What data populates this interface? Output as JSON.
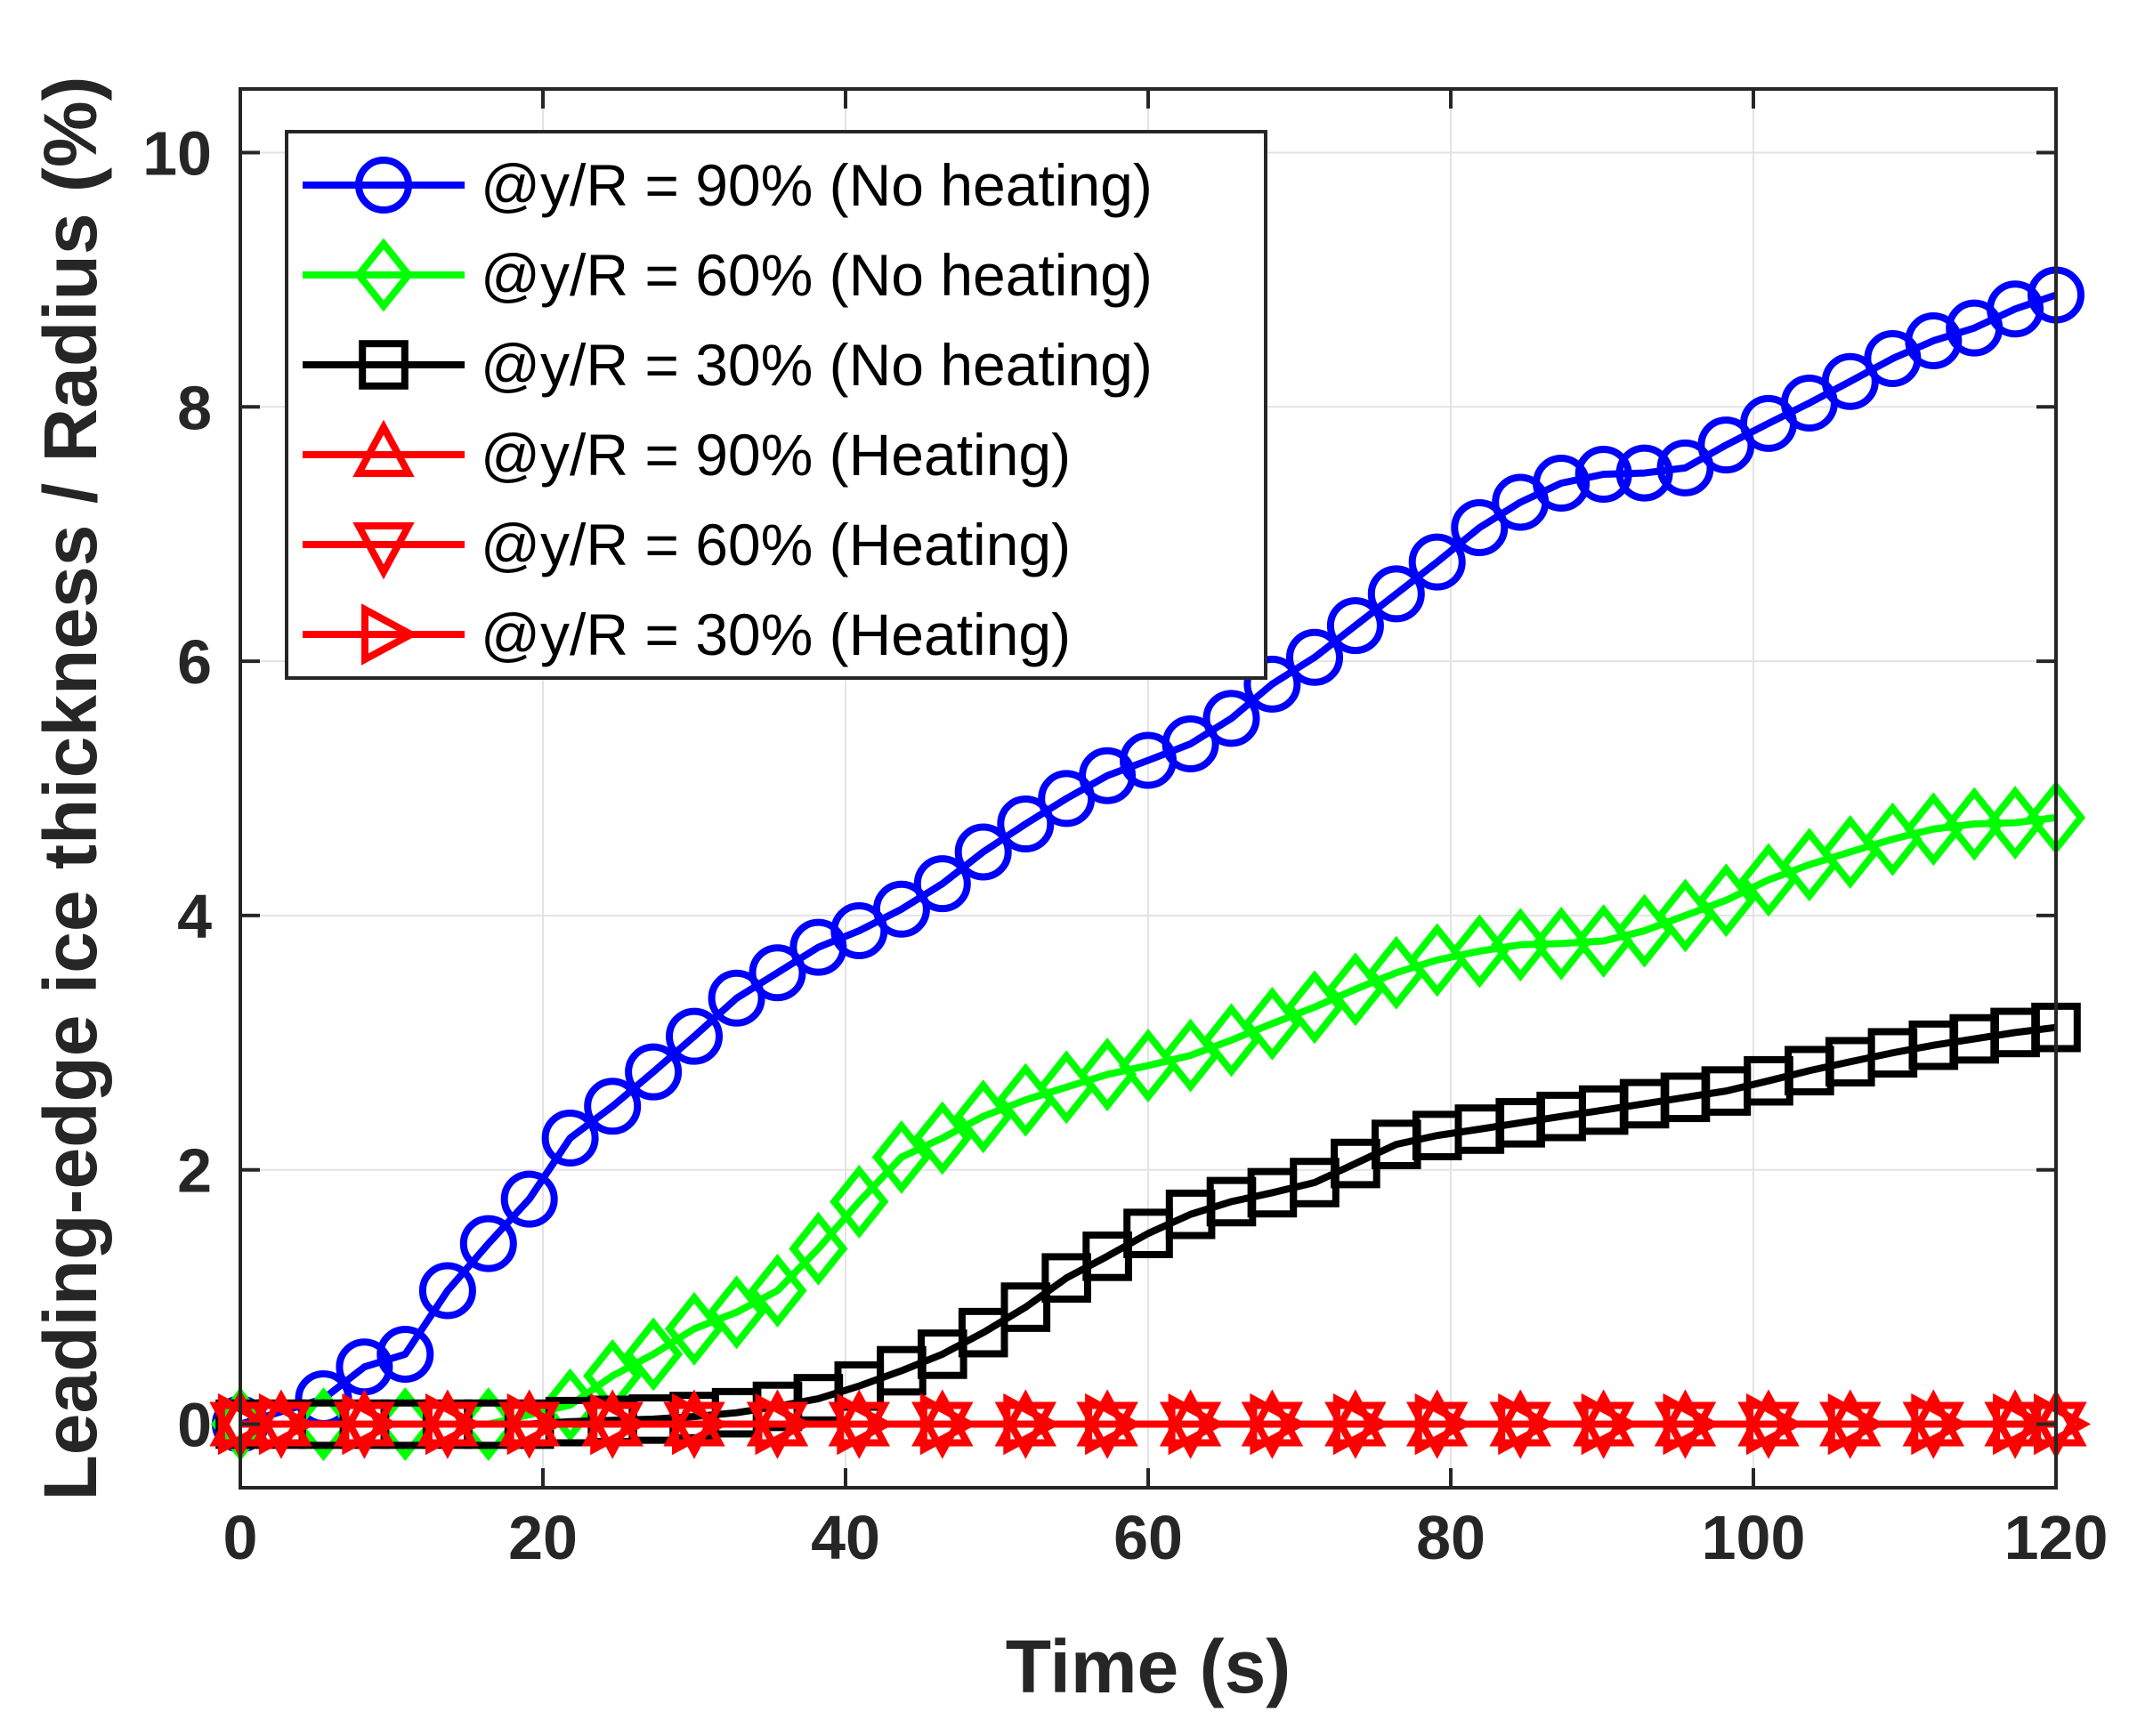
{
  "chart_data": {
    "type": "line",
    "title": "",
    "xlabel": "Time (s)",
    "ylabel": "Leading-edge ice thickness / Radius (%)",
    "xlim": [
      0,
      120
    ],
    "ylim": [
      -0.5,
      10.5
    ],
    "xticks": [
      0,
      20,
      40,
      60,
      80,
      100,
      120
    ],
    "yticks": [
      0,
      2,
      4,
      6,
      8,
      10
    ],
    "xtick_labels": [
      "0",
      "20",
      "40",
      "60",
      "80",
      "100",
      "120"
    ],
    "ytick_labels": [
      "0",
      "2",
      "4",
      "6",
      "8",
      "10"
    ],
    "grid": true,
    "legend_position": "top-left",
    "series": [
      {
        "name": "@y/R = 90% (No heating)",
        "color": "#0000ff",
        "marker": "circle",
        "x": [
          0,
          5.5,
          8.2,
          10.9,
          13.7,
          16.4,
          19.1,
          21.8,
          24.6,
          27.3,
          30.0,
          32.8,
          35.5,
          38.2,
          40.9,
          43.7,
          46.4,
          49.1,
          51.9,
          54.6,
          57.3,
          60.0,
          62.8,
          65.5,
          68.2,
          71.0,
          73.7,
          76.4,
          79.1,
          81.9,
          84.6,
          87.3,
          90.1,
          92.8,
          95.5,
          98.2,
          101.0,
          103.7,
          106.4,
          109.2,
          111.9,
          114.6,
          117.3,
          120.0
        ],
        "y": [
          0.0,
          0.2,
          0.45,
          0.55,
          1.05,
          1.42,
          1.77,
          2.25,
          2.5,
          2.77,
          3.05,
          3.35,
          3.55,
          3.75,
          3.88,
          4.05,
          4.25,
          4.5,
          4.72,
          4.92,
          5.1,
          5.22,
          5.35,
          5.55,
          5.82,
          6.03,
          6.28,
          6.53,
          6.78,
          7.05,
          7.25,
          7.4,
          7.47,
          7.48,
          7.52,
          7.7,
          7.87,
          8.03,
          8.2,
          8.38,
          8.52,
          8.62,
          8.77,
          8.88
        ]
      },
      {
        "name": "@y/R = 60% (No heating)",
        "color": "#00ff00",
        "marker": "diamond",
        "x": [
          0,
          5.5,
          10.9,
          16.4,
          21.8,
          24.6,
          27.3,
          30.0,
          32.8,
          35.5,
          38.2,
          40.9,
          43.7,
          46.4,
          49.1,
          51.9,
          54.6,
          57.3,
          60.0,
          62.8,
          65.5,
          68.2,
          71.0,
          73.7,
          76.4,
          79.1,
          81.9,
          84.6,
          87.3,
          90.1,
          92.8,
          95.5,
          98.2,
          101.0,
          103.7,
          106.4,
          109.2,
          111.9,
          114.6,
          117.3,
          120.0
        ],
        "y": [
          0.0,
          0.0,
          0.0,
          0.0,
          0.15,
          0.38,
          0.55,
          0.75,
          0.88,
          1.05,
          1.38,
          1.75,
          2.1,
          2.25,
          2.42,
          2.55,
          2.65,
          2.75,
          2.82,
          2.9,
          3.02,
          3.15,
          3.28,
          3.42,
          3.55,
          3.65,
          3.72,
          3.77,
          3.78,
          3.8,
          3.88,
          4.0,
          4.12,
          4.28,
          4.4,
          4.5,
          4.6,
          4.68,
          4.72,
          4.73,
          4.77
        ]
      },
      {
        "name": "@y/R = 30% (No heating)",
        "color": "#000000",
        "marker": "square",
        "x": [
          0,
          2.7,
          5.5,
          8.2,
          10.9,
          13.7,
          16.4,
          19.1,
          21.8,
          24.6,
          27.3,
          30.0,
          32.8,
          35.5,
          38.2,
          40.9,
          43.7,
          46.4,
          49.1,
          51.9,
          54.6,
          57.3,
          60.0,
          62.8,
          65.5,
          68.2,
          71.0,
          73.7,
          76.4,
          79.1,
          81.9,
          84.6,
          87.3,
          90.1,
          92.8,
          95.5,
          98.2,
          101.0,
          103.7,
          106.4,
          109.2,
          111.9,
          114.6,
          117.3,
          120.0
        ],
        "y": [
          0.0,
          0.0,
          0.0,
          0.0,
          0.0,
          0.0,
          0.0,
          0.0,
          0.02,
          0.03,
          0.04,
          0.06,
          0.09,
          0.14,
          0.2,
          0.3,
          0.42,
          0.55,
          0.72,
          0.92,
          1.15,
          1.32,
          1.5,
          1.65,
          1.75,
          1.82,
          1.9,
          2.05,
          2.2,
          2.27,
          2.32,
          2.37,
          2.42,
          2.47,
          2.52,
          2.57,
          2.62,
          2.7,
          2.78,
          2.85,
          2.92,
          2.98,
          3.03,
          3.08,
          3.12
        ]
      },
      {
        "name": "@y/R = 90% (Heating)",
        "color": "#ff0000",
        "marker": "triangle-up",
        "x": [
          0,
          2.7,
          8.2,
          13.7,
          19.1,
          24.6,
          30.0,
          35.5,
          40.9,
          46.4,
          51.9,
          57.3,
          62.8,
          68.2,
          73.7,
          79.1,
          84.6,
          90.1,
          95.5,
          101.0,
          106.4,
          111.9,
          117.3,
          120.0
        ],
        "y": [
          0,
          0,
          0,
          0,
          0,
          0,
          0,
          0,
          0,
          0,
          0,
          0,
          0,
          0,
          0,
          0,
          0,
          0,
          0,
          0,
          0,
          0,
          0,
          0
        ]
      },
      {
        "name": "@y/R = 60% (Heating)",
        "color": "#ff0000",
        "marker": "triangle-down",
        "x": [
          0,
          2.7,
          8.2,
          13.7,
          19.1,
          24.6,
          30.0,
          35.5,
          40.9,
          46.4,
          51.9,
          57.3,
          62.8,
          68.2,
          73.7,
          79.1,
          84.6,
          90.1,
          95.5,
          101.0,
          106.4,
          111.9,
          117.3,
          120.0
        ],
        "y": [
          0,
          0,
          0,
          0,
          0,
          0,
          0,
          0,
          0,
          0,
          0,
          0,
          0,
          0,
          0,
          0,
          0,
          0,
          0,
          0,
          0,
          0,
          0,
          0
        ]
      },
      {
        "name": "@y/R = 30% (Heating)",
        "color": "#ff0000",
        "marker": "triangle-right",
        "x": [
          0,
          2.7,
          8.2,
          13.7,
          19.1,
          24.6,
          30.0,
          35.5,
          40.9,
          46.4,
          51.9,
          57.3,
          62.8,
          68.2,
          73.7,
          79.1,
          84.6,
          90.1,
          95.5,
          101.0,
          106.4,
          111.9,
          117.3,
          120.0
        ],
        "y": [
          0,
          0,
          0,
          0,
          0,
          0,
          0,
          0,
          0,
          0,
          0,
          0,
          0,
          0,
          0,
          0,
          0,
          0,
          0,
          0,
          0,
          0,
          0,
          0
        ]
      }
    ]
  }
}
